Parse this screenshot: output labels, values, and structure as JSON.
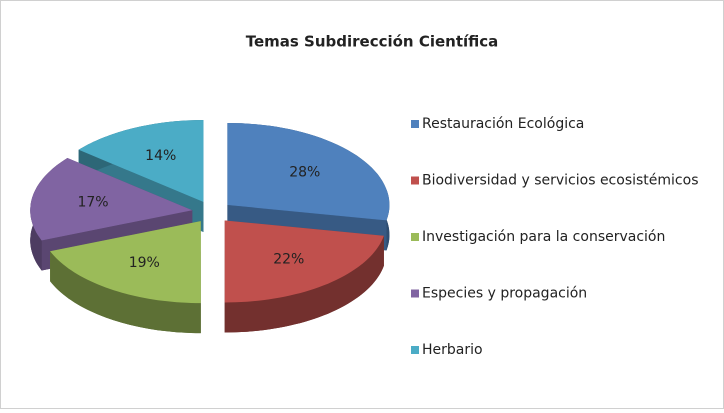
{
  "chart_data": {
    "type": "pie3d",
    "title": "Temas Subdirección Científica",
    "categories": [
      "Restauración Ecológica",
      "Biodiversidad y servicios ecosistémicos",
      "Investigación para la conservación",
      "Especies y propagación",
      "Herbario"
    ],
    "values": [
      28,
      22,
      19,
      17,
      14
    ],
    "value_labels": [
      "28%",
      "22%",
      "19%",
      "17%",
      "14%"
    ],
    "colors": [
      "#4f81bd",
      "#c0504d",
      "#9bbb59",
      "#8064a2",
      "#4bacc6"
    ],
    "legend": "right"
  }
}
